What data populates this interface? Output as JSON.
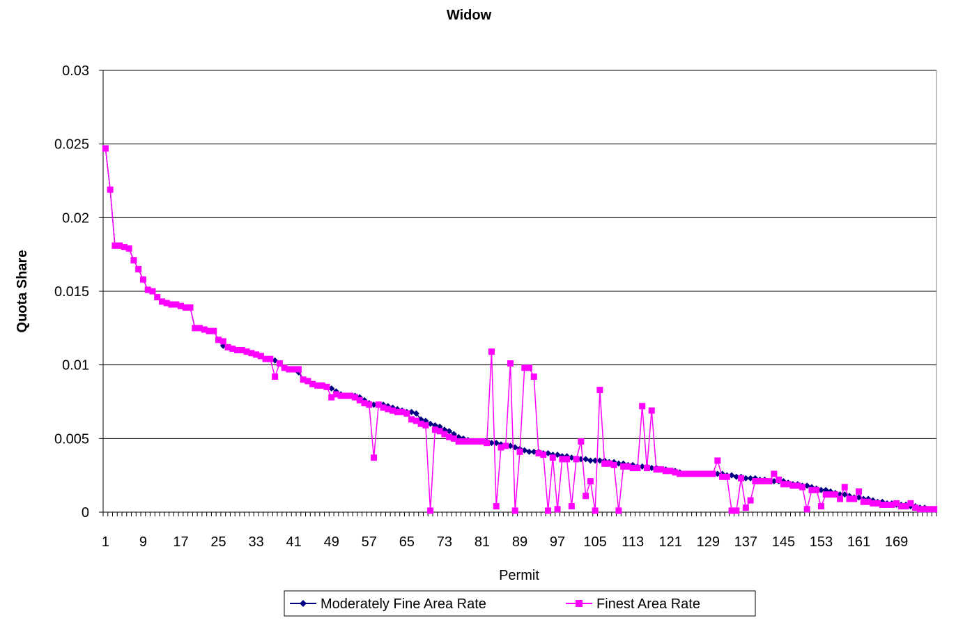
{
  "chart_data": {
    "type": "line",
    "title": "Widow",
    "xlabel": "Permit",
    "ylabel": "Quota Share",
    "ylim": [
      0,
      0.03
    ],
    "yticks": [
      "0",
      "0.005",
      "0.01",
      "0.015",
      "0.02",
      "0.025",
      "0.03"
    ],
    "xlim": [
      1,
      169
    ],
    "xtick_labels": [
      "1",
      "9",
      "17",
      "25",
      "33",
      "41",
      "49",
      "57",
      "65",
      "73",
      "81",
      "89",
      "97",
      "105",
      "113",
      "121",
      "129",
      "137",
      "145",
      "153",
      "161",
      "169"
    ],
    "grid": "horizontal",
    "legend_position": "bottom",
    "series": [
      {
        "name": "Moderately Fine Area Rate",
        "color": "#000080",
        "marker": "diamond",
        "values": [
          0.0247,
          0.0219,
          0.0181,
          0.0181,
          0.018,
          0.0179,
          0.0171,
          0.0165,
          0.0158,
          0.0151,
          0.015,
          0.0146,
          0.0143,
          0.0142,
          0.0141,
          0.0141,
          0.014,
          0.0139,
          0.0139,
          0.0125,
          0.0125,
          0.0124,
          0.0123,
          0.0123,
          0.0117,
          0.0113,
          0.0112,
          0.0111,
          0.011,
          0.011,
          0.0109,
          0.0108,
          0.0107,
          0.0106,
          0.0104,
          0.0104,
          0.0103,
          0.0101,
          0.0098,
          0.0097,
          0.0097,
          0.0095,
          0.009,
          0.0089,
          0.0087,
          0.0086,
          0.0086,
          0.0085,
          0.0084,
          0.0082,
          0.008,
          0.0079,
          0.0079,
          0.0079,
          0.0078,
          0.0076,
          0.0074,
          0.0073,
          0.0073,
          0.0073,
          0.0072,
          0.0071,
          0.007,
          0.0069,
          0.0068,
          0.0068,
          0.0067,
          0.0063,
          0.0062,
          0.006,
          0.0059,
          0.0058,
          0.0056,
          0.0055,
          0.0053,
          0.0051,
          0.005,
          0.0049,
          0.0048,
          0.0048,
          0.0048,
          0.0048,
          0.0047,
          0.0047,
          0.0046,
          0.0045,
          0.0045,
          0.0044,
          0.0043,
          0.0042,
          0.0041,
          0.0041,
          0.0041,
          0.004,
          0.004,
          0.0039,
          0.0039,
          0.0038,
          0.0038,
          0.0037,
          0.0036,
          0.0036,
          0.0036,
          0.0035,
          0.0035,
          0.0035,
          0.0035,
          0.0034,
          0.0034,
          0.0033,
          0.0033,
          0.0032,
          0.0032,
          0.0031,
          0.0031,
          0.0031,
          0.003,
          0.003,
          0.0029,
          0.0029,
          0.0028,
          0.0028,
          0.0027,
          0.0026,
          0.0026,
          0.0026,
          0.0026,
          0.0026,
          0.0026,
          0.0026,
          0.0026,
          0.0026,
          0.0025,
          0.0025,
          0.0024,
          0.0024,
          0.0023,
          0.0023,
          0.0023,
          0.0022,
          0.0022,
          0.0021,
          0.0021,
          0.0021,
          0.0021,
          0.002,
          0.0019,
          0.0019,
          0.0018,
          0.0018,
          0.0017,
          0.0016,
          0.0015,
          0.0015,
          0.0014,
          0.0013,
          0.0012,
          0.0012,
          0.0011,
          0.001,
          0.001,
          0.0009,
          0.0009,
          0.0008,
          0.0007,
          0.0007,
          0.0006,
          0.0006,
          0.0005,
          0.0005,
          0.0005,
          0.0004,
          0.0004,
          0.0003,
          0.0003,
          0.0002,
          0.0002
        ]
      },
      {
        "name": "Finest Area Rate",
        "color": "#FF00FF",
        "marker": "square",
        "values": [
          0.0247,
          0.0219,
          0.0181,
          0.0181,
          0.018,
          0.0179,
          0.0171,
          0.0165,
          0.0158,
          0.0151,
          0.015,
          0.0146,
          0.0143,
          0.0142,
          0.0141,
          0.0141,
          0.014,
          0.0139,
          0.0139,
          0.0125,
          0.0125,
          0.0124,
          0.0123,
          0.0123,
          0.0117,
          0.0116,
          0.0112,
          0.0111,
          0.011,
          0.011,
          0.0109,
          0.0108,
          0.0107,
          0.0106,
          0.0104,
          0.0104,
          0.0092,
          0.0101,
          0.0098,
          0.0097,
          0.0097,
          0.0097,
          0.009,
          0.0089,
          0.0087,
          0.0086,
          0.0086,
          0.0085,
          0.0078,
          0.008,
          0.0079,
          0.0079,
          0.0079,
          0.0078,
          0.0076,
          0.0074,
          0.0073,
          0.0037,
          0.0073,
          0.0071,
          0.007,
          0.0069,
          0.0068,
          0.0068,
          0.0067,
          0.0063,
          0.0062,
          0.006,
          0.0059,
          0.0001,
          0.0056,
          0.0055,
          0.0053,
          0.0051,
          0.005,
          0.0048,
          0.0048,
          0.0048,
          0.0048,
          0.0048,
          0.0048,
          0.0047,
          0.0109,
          0.0004,
          0.0044,
          0.0045,
          0.0101,
          0.0001,
          0.0041,
          0.0098,
          0.0098,
          0.0092,
          0.004,
          0.0039,
          0.0001,
          0.0037,
          0.0002,
          0.0036,
          0.0036,
          0.0004,
          0.0036,
          0.0048,
          0.0011,
          0.0021,
          0.0001,
          0.0083,
          0.0033,
          0.0033,
          0.0032,
          0.0001,
          0.0031,
          0.0031,
          0.003,
          0.003,
          0.0072,
          0.003,
          0.0069,
          0.0029,
          0.0029,
          0.0028,
          0.0028,
          0.0027,
          0.0026,
          0.0026,
          0.0026,
          0.0026,
          0.0026,
          0.0026,
          0.0026,
          0.0026,
          0.0035,
          0.0024,
          0.0024,
          0.0001,
          0.0001,
          0.0023,
          0.0003,
          0.0008,
          0.0021,
          0.0021,
          0.0021,
          0.0021,
          0.0026,
          0.0022,
          0.0019,
          0.0019,
          0.0018,
          0.0018,
          0.0017,
          0.0002,
          0.0015,
          0.0015,
          0.0004,
          0.0012,
          0.0012,
          0.0012,
          0.0009,
          0.0017,
          0.0009,
          0.0009,
          0.0014,
          0.0007,
          0.0007,
          0.0006,
          0.0006,
          0.0005,
          0.0005,
          0.0005,
          0.0006,
          0.0004,
          0.0004,
          0.0006,
          0.0003,
          0.0002,
          0.0002,
          0.0002,
          0.0002
        ]
      }
    ]
  }
}
